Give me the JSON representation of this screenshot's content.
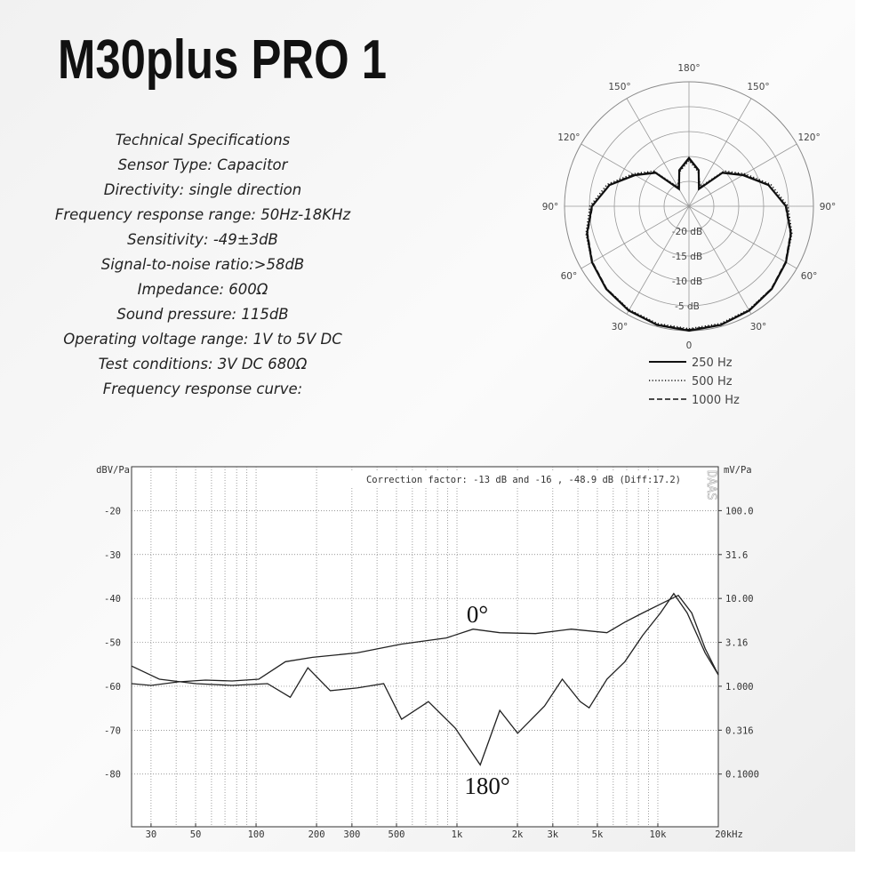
{
  "title": "M30plus PRO 1",
  "specs": [
    "Technical Specifications",
    "Sensor Type: Capacitor",
    "Directivity: single direction",
    "Frequency response range: 50Hz-18KHz",
    "Sensitivity: -49±3dB",
    "Signal-to-noise ratio:>58dB",
    "Impedance: 600Ω",
    "Sound pressure: 115dB",
    "Operating voltage range: 1V to 5V DC",
    "Test conditions: 3V DC 680Ω",
    "Frequency response curve:"
  ],
  "chart_data": [
    {
      "type": "polar",
      "theta": [
        0,
        15,
        30,
        45,
        60,
        75,
        90,
        105,
        120,
        135,
        150,
        165,
        180,
        195,
        210,
        225,
        240,
        255,
        270,
        285,
        300,
        315,
        330,
        345
      ],
      "rlim": [
        -25,
        0
      ],
      "rticks": [
        {
          "value": -20,
          "label": "-20 dB"
        },
        {
          "value": -15,
          "label": "-15 dB"
        },
        {
          "value": -10,
          "label": "-10 dB"
        },
        {
          "value": -5,
          "label": "-5 dB"
        }
      ],
      "angle_ticks": [
        {
          "value": 0,
          "label": "0"
        },
        {
          "value": 30,
          "label": "30°"
        },
        {
          "value": 60,
          "label": "60°"
        },
        {
          "value": 90,
          "label": "90°"
        },
        {
          "value": 120,
          "label": "120°"
        },
        {
          "value": 150,
          "label": "150°"
        },
        {
          "value": 180,
          "label": "180°"
        }
      ],
      "series": [
        {
          "name": "250 Hz",
          "style": "solid",
          "color": "#111111",
          "values": [
            0,
            -0.3,
            -0.8,
            -1.5,
            -2.5,
            -3.8,
            -5.5,
            -8.5,
            -12.5,
            -15.5,
            -21,
            -17.5,
            -15.3,
            -17.5,
            -21,
            -15.5,
            -12.5,
            -8.5,
            -5.5,
            -3.8,
            -2.5,
            -1.5,
            -0.8,
            -0.3
          ]
        },
        {
          "name": "500 Hz",
          "style": "dotted",
          "color": "#111111",
          "values": [
            -0.4,
            -0.6,
            -1,
            -1.6,
            -2.5,
            -3.6,
            -5.1,
            -8,
            -12,
            -15,
            -20.5,
            -17.8,
            -15.8,
            -17.8,
            -20.5,
            -15,
            -12,
            -8,
            -5.1,
            -3.6,
            -2.5,
            -1.6,
            -1,
            -0.6
          ]
        },
        {
          "name": "1000 Hz",
          "style": "dashed",
          "color": "#111111",
          "values": [
            -0.2,
            -0.4,
            -0.9,
            -1.6,
            -2.6,
            -3.9,
            -5.6,
            -8.4,
            -12.3,
            -15.3,
            -20.8,
            -17.6,
            -15.5,
            -17.6,
            -20.8,
            -15.3,
            -12.3,
            -8.4,
            -5.6,
            -3.9,
            -2.6,
            -1.6,
            -0.9,
            -0.4
          ]
        }
      ]
    },
    {
      "type": "line",
      "y_label": "dBV/Pa",
      "y2_label": "mV/Pa",
      "annotation": "Correction factor: -13 dB and -16 , -48.9 dB (Diff:17.2)",
      "watermark": "DAAS",
      "xlog": true,
      "xlim": [
        24,
        20000
      ],
      "xticks": [
        30,
        50,
        100,
        200,
        300,
        500,
        {
          "value": 1000,
          "label": "1k"
        },
        {
          "value": 2000,
          "label": "2k"
        },
        {
          "value": 3000,
          "label": "3k"
        },
        {
          "value": 5000,
          "label": "5k"
        },
        {
          "value": 10000,
          "label": "10k"
        },
        {
          "value": 20000,
          "label": "20kHz"
        }
      ],
      "xgrid": [
        30,
        40,
        50,
        60,
        70,
        80,
        90,
        100,
        200,
        300,
        400,
        500,
        600,
        700,
        800,
        900,
        1000,
        2000,
        3000,
        4000,
        5000,
        6000,
        7000,
        8000,
        9000,
        10000
      ],
      "ylim": [
        -92,
        -10
      ],
      "yticks": [
        -20,
        -30,
        -40,
        -50,
        -60,
        -70,
        -80
      ],
      "y2log": true,
      "y2lim": [
        0.0251,
        316.2
      ],
      "y2ticks": [
        {
          "value": 100,
          "label": "100.0"
        },
        31.6,
        {
          "value": 10,
          "label": "10.00"
        },
        3.16,
        {
          "value": 1,
          "label": "1.000"
        },
        0.316,
        {
          "value": 0.1,
          "label": "0.1000"
        }
      ],
      "grid": true,
      "series": [
        {
          "name": "0°",
          "color": "#222222",
          "x": [
            24,
            30,
            41,
            56,
            76,
            103,
            140,
            191,
            318,
            530,
            885,
            1202,
            1634,
            2460,
            3707,
            5580,
            6850,
            8400,
            10300,
            12650,
            14750,
            17200,
            20000
          ],
          "values": [
            -59.4,
            -59.8,
            -59,
            -58.6,
            -58.8,
            -58.4,
            -54.4,
            -53.4,
            -52.4,
            -50.4,
            -49,
            -47,
            -47.8,
            -48,
            -47,
            -47.8,
            -45.4,
            -43.3,
            -41.3,
            -39.3,
            -43.3,
            -51.4,
            -57.4
          ]
        },
        {
          "name": "180°",
          "color": "#222222",
          "x": [
            24,
            33,
            50,
            76,
            114,
            148,
            181,
            234,
            318,
            432,
            530,
            721,
            980,
            1306,
            1634,
            2005,
            2729,
            3345,
            4104,
            4549,
            5580,
            6850,
            8400,
            10300,
            12000,
            14000,
            17200,
            20000
          ],
          "values": [
            -55.4,
            -58.4,
            -59.4,
            -59.8,
            -59.4,
            -62.5,
            -55.8,
            -61,
            -60.4,
            -59.4,
            -67.5,
            -63.5,
            -69.5,
            -77.9,
            -65.5,
            -70.7,
            -64.5,
            -58.4,
            -63.5,
            -64.9,
            -58.4,
            -54.4,
            -48.4,
            -43.3,
            -38.9,
            -43.3,
            -52.4,
            -57.4
          ]
        }
      ]
    }
  ]
}
